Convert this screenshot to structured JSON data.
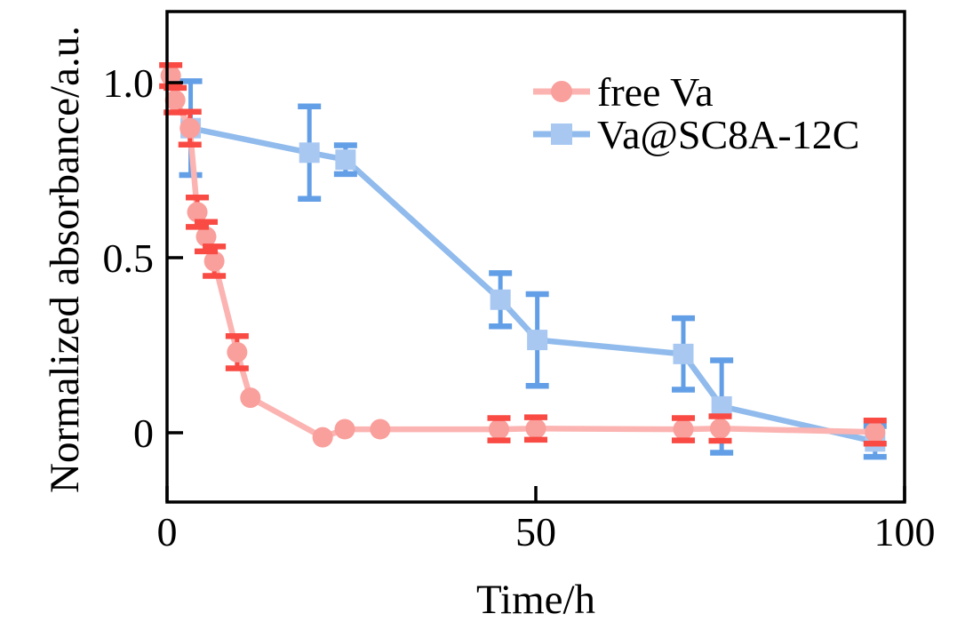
{
  "chart_data": {
    "type": "line",
    "title": "",
    "xlabel": "Time/h",
    "ylabel": "Normalized absorbance/a.u.",
    "xlim": [
      0,
      100
    ],
    "ylim": [
      -0.2,
      1.2
    ],
    "grid": false,
    "xticks": [
      {
        "value": 0,
        "label": "0"
      },
      {
        "value": 50,
        "label": "50"
      },
      {
        "value": 100,
        "label": "100"
      }
    ],
    "yticks": [
      {
        "value": 0,
        "label": "0"
      },
      {
        "value": 0.5,
        "label": "0.5"
      },
      {
        "value": 1.0,
        "label": "1.0"
      }
    ],
    "legend": {
      "position": "upper-right-inside",
      "items": [
        {
          "label": "free Va"
        },
        {
          "label": "Va@SC8A-12C"
        }
      ]
    },
    "series": [
      {
        "name": "Va@SC8A-12C",
        "marker": "square",
        "line_color": "#90BBEC",
        "marker_color": "#A8C8F1",
        "error_color": "#639FE6",
        "points": [
          {
            "x": 3.2,
            "y": 0.87,
            "err": 0.134
          },
          {
            "x": 19.3,
            "y": 0.8,
            "err": 0.132
          },
          {
            "x": 24.2,
            "y": 0.78,
            "err": 0.041
          },
          {
            "x": 45.2,
            "y": 0.38,
            "err": 0.076
          },
          {
            "x": 50.2,
            "y": 0.265,
            "err": 0.131
          },
          {
            "x": 70.0,
            "y": 0.225,
            "err": 0.102
          },
          {
            "x": 75.2,
            "y": 0.075,
            "err": 0.132
          },
          {
            "x": 96.0,
            "y": -0.025,
            "err": 0.044
          }
        ]
      },
      {
        "name": "free Va",
        "marker": "circle",
        "line_color": "#FBB4B1",
        "marker_color": "#F99F9C",
        "error_color": "#F94A43",
        "points": [
          {
            "x": 0.5,
            "y": 1.02,
            "err": 0.03
          },
          {
            "x": 1.1,
            "y": 0.95,
            "err": 0.035
          },
          {
            "x": 3.1,
            "y": 0.87,
            "err": 0.047
          },
          {
            "x": 4.1,
            "y": 0.63,
            "err": 0.042
          },
          {
            "x": 5.3,
            "y": 0.56,
            "err": 0.042
          },
          {
            "x": 6.4,
            "y": 0.49,
            "err": 0.042
          },
          {
            "x": 9.5,
            "y": 0.23,
            "err": 0.046
          },
          {
            "x": 11.3,
            "y": 0.1,
            "err": 0
          },
          {
            "x": 21.1,
            "y": -0.013,
            "err": 0
          },
          {
            "x": 24.1,
            "y": 0.01,
            "err": 0
          },
          {
            "x": 28.9,
            "y": 0.01,
            "err": 0
          },
          {
            "x": 45.0,
            "y": 0.01,
            "err": 0.032
          },
          {
            "x": 50.0,
            "y": 0.012,
            "err": 0.032
          },
          {
            "x": 70.0,
            "y": 0.01,
            "err": 0.032
          },
          {
            "x": 75.0,
            "y": 0.012,
            "err": 0.035
          },
          {
            "x": 96.0,
            "y": 0.002,
            "err": 0.033
          }
        ]
      }
    ]
  }
}
